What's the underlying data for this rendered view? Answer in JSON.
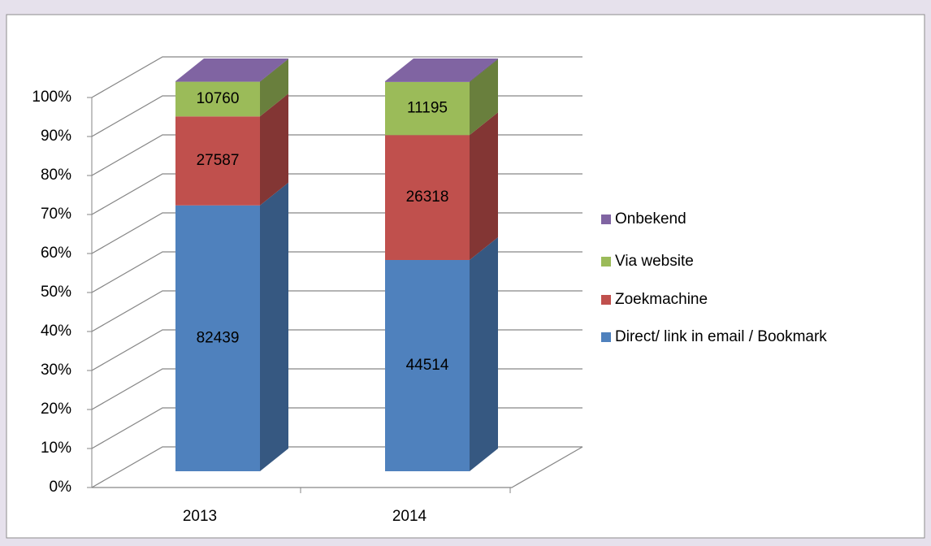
{
  "chart_data": {
    "type": "bar3d_stacked_percent",
    "categories": [
      "2013",
      "2014"
    ],
    "series": [
      {
        "name": "Direct/ link in email / Bookmark",
        "color": "#4f81bd",
        "values": [
          82439,
          44514
        ]
      },
      {
        "name": "Zoekmachine",
        "color": "#c0504d",
        "values": [
          27587,
          26318
        ]
      },
      {
        "name": "Via website",
        "color": "#9bbb59",
        "values": [
          10760,
          11195
        ]
      },
      {
        "name": "Onbekend",
        "color": "#8064a2",
        "values": [
          150,
          150
        ]
      }
    ],
    "ylim": [
      0,
      100
    ],
    "yticks": [
      {
        "value": 0,
        "label": "0%"
      },
      {
        "value": 10,
        "label": "10%"
      },
      {
        "value": 20,
        "label": "20%"
      },
      {
        "value": 30,
        "label": "30%"
      },
      {
        "value": 40,
        "label": "40%"
      },
      {
        "value": 50,
        "label": "50%"
      },
      {
        "value": 60,
        "label": "60%"
      },
      {
        "value": 70,
        "label": "70%"
      },
      {
        "value": 80,
        "label": "80%"
      },
      {
        "value": 90,
        "label": "90%"
      },
      {
        "value": 100,
        "label": "100%"
      }
    ],
    "grid": true,
    "legend": "right"
  }
}
